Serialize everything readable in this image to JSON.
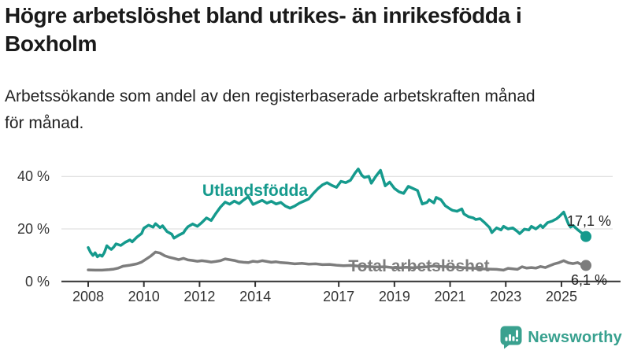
{
  "header": {
    "title_lines": [
      "Högre arbetslöshet bland utrikes- än inrikesfödda i",
      "Boxholm"
    ],
    "subtitle_lines": [
      "Arbetssökande som andel av den registerbaserade arbetskraften månad",
      "för månad."
    ]
  },
  "footer": {
    "brand": "Newsworthy"
  },
  "colors": {
    "foreign_line": "#159a8d",
    "total_line": "#7d7d7d",
    "axis": "#333333",
    "grid": "#d9d9d9",
    "value_label": "#222222",
    "brand": "#38a18f",
    "title_text": "#1a1a1a"
  },
  "chart_data": {
    "type": "line",
    "title": "Högre arbetslöshet bland utrikes- än inrikesfödda i Boxholm",
    "subtitle": "Arbetssökande som andel av den registerbaserade arbetskraften månad för månad.",
    "unit": "%",
    "grid": "horizontal",
    "x_axis": {
      "range": [
        2007.95,
        2026.15
      ],
      "ticks": [
        {
          "year": 2008,
          "label": "2008"
        },
        {
          "year": 2010,
          "label": "2010"
        },
        {
          "year": 2012,
          "label": "2012"
        },
        {
          "year": 2014,
          "label": "2014"
        },
        {
          "year": 2017,
          "label": "2017"
        },
        {
          "year": 2019,
          "label": "2019"
        },
        {
          "year": 2021,
          "label": "2021"
        },
        {
          "year": 2023,
          "label": "2023"
        },
        {
          "year": 2025,
          "label": "2025"
        }
      ]
    },
    "y_axis": {
      "range": [
        0,
        44
      ],
      "ticks": [
        {
          "value": 0,
          "label": "0 %"
        },
        {
          "value": 20,
          "label": "20 %"
        },
        {
          "value": 40,
          "label": "40 %"
        }
      ]
    },
    "series": [
      {
        "id": "total",
        "name": "Total arbetslöshet",
        "color": "#7d7d7d",
        "end_value": 6.1,
        "end_label": "6,1 %",
        "points": [
          [
            2008.0,
            4.4
          ],
          [
            2008.25,
            4.3
          ],
          [
            2008.5,
            4.3
          ],
          [
            2008.75,
            4.5
          ],
          [
            2008.92,
            4.7
          ],
          [
            2009.08,
            5.1
          ],
          [
            2009.25,
            5.8
          ],
          [
            2009.5,
            6.2
          ],
          [
            2009.75,
            6.7
          ],
          [
            2009.92,
            7.4
          ],
          [
            2010.08,
            8.5
          ],
          [
            2010.25,
            9.7
          ],
          [
            2010.42,
            11.2
          ],
          [
            2010.58,
            10.8
          ],
          [
            2010.75,
            9.8
          ],
          [
            2010.92,
            9.2
          ],
          [
            2011.08,
            8.8
          ],
          [
            2011.25,
            8.3
          ],
          [
            2011.42,
            8.8
          ],
          [
            2011.58,
            8.2
          ],
          [
            2011.75,
            8.0
          ],
          [
            2011.92,
            7.7
          ],
          [
            2012.08,
            7.9
          ],
          [
            2012.25,
            7.7
          ],
          [
            2012.42,
            7.4
          ],
          [
            2012.58,
            7.6
          ],
          [
            2012.75,
            7.9
          ],
          [
            2012.92,
            8.6
          ],
          [
            2013.08,
            8.3
          ],
          [
            2013.25,
            8.0
          ],
          [
            2013.42,
            7.5
          ],
          [
            2013.58,
            7.3
          ],
          [
            2013.75,
            7.2
          ],
          [
            2013.92,
            7.7
          ],
          [
            2014.08,
            7.5
          ],
          [
            2014.25,
            7.9
          ],
          [
            2014.42,
            7.6
          ],
          [
            2014.58,
            7.3
          ],
          [
            2014.75,
            7.5
          ],
          [
            2014.92,
            7.2
          ],
          [
            2015.17,
            7.0
          ],
          [
            2015.42,
            6.7
          ],
          [
            2015.67,
            6.9
          ],
          [
            2015.92,
            6.6
          ],
          [
            2016.17,
            6.7
          ],
          [
            2016.42,
            6.4
          ],
          [
            2016.67,
            6.5
          ],
          [
            2016.92,
            6.2
          ],
          [
            2017.17,
            6.0
          ],
          [
            2017.42,
            6.1
          ],
          [
            2017.67,
            5.9
          ],
          [
            2017.92,
            5.7
          ],
          [
            2018.17,
            5.6
          ],
          [
            2018.42,
            5.5
          ],
          [
            2018.67,
            5.6
          ],
          [
            2018.92,
            5.3
          ],
          [
            2019.17,
            5.2
          ],
          [
            2019.42,
            5.4
          ],
          [
            2019.67,
            5.2
          ],
          [
            2019.92,
            5.4
          ],
          [
            2020.17,
            5.6
          ],
          [
            2020.42,
            5.9
          ],
          [
            2020.67,
            5.7
          ],
          [
            2020.92,
            5.6
          ],
          [
            2021.17,
            5.4
          ],
          [
            2021.42,
            5.3
          ],
          [
            2021.67,
            5.1
          ],
          [
            2021.92,
            5.0
          ],
          [
            2022.17,
            4.8
          ],
          [
            2022.42,
            4.7
          ],
          [
            2022.67,
            4.6
          ],
          [
            2022.92,
            4.3
          ],
          [
            2023.08,
            5.0
          ],
          [
            2023.25,
            4.8
          ],
          [
            2023.42,
            4.6
          ],
          [
            2023.58,
            5.6
          ],
          [
            2023.75,
            5.1
          ],
          [
            2023.92,
            5.3
          ],
          [
            2024.08,
            5.1
          ],
          [
            2024.25,
            5.7
          ],
          [
            2024.42,
            5.3
          ],
          [
            2024.58,
            6.0
          ],
          [
            2024.75,
            6.7
          ],
          [
            2024.92,
            7.2
          ],
          [
            2025.08,
            7.9
          ],
          [
            2025.25,
            7.1
          ],
          [
            2025.42,
            6.8
          ],
          [
            2025.58,
            7.2
          ],
          [
            2025.75,
            6.3
          ],
          [
            2025.88,
            6.1
          ]
        ]
      },
      {
        "id": "foreign",
        "name": "Utlandsfödda",
        "color": "#159a8d",
        "end_value": 17.1,
        "end_label": "17,1 %",
        "points": [
          [
            2008.0,
            12.9
          ],
          [
            2008.08,
            11.2
          ],
          [
            2008.17,
            9.9
          ],
          [
            2008.25,
            10.9
          ],
          [
            2008.33,
            9.4
          ],
          [
            2008.42,
            10.1
          ],
          [
            2008.5,
            9.6
          ],
          [
            2008.58,
            11.0
          ],
          [
            2008.67,
            13.6
          ],
          [
            2008.75,
            12.8
          ],
          [
            2008.83,
            12.2
          ],
          [
            2008.92,
            13.1
          ],
          [
            2009.0,
            14.3
          ],
          [
            2009.17,
            13.7
          ],
          [
            2009.33,
            14.9
          ],
          [
            2009.5,
            15.8
          ],
          [
            2009.58,
            15.1
          ],
          [
            2009.75,
            16.9
          ],
          [
            2009.92,
            18.3
          ],
          [
            2010.0,
            20.3
          ],
          [
            2010.17,
            21.4
          ],
          [
            2010.33,
            20.7
          ],
          [
            2010.42,
            22.0
          ],
          [
            2010.58,
            20.5
          ],
          [
            2010.67,
            21.2
          ],
          [
            2010.83,
            19.0
          ],
          [
            2011.0,
            18.0
          ],
          [
            2011.08,
            16.5
          ],
          [
            2011.25,
            17.6
          ],
          [
            2011.42,
            18.5
          ],
          [
            2011.5,
            19.8
          ],
          [
            2011.58,
            20.8
          ],
          [
            2011.75,
            21.9
          ],
          [
            2011.92,
            21.0
          ],
          [
            2012.08,
            22.4
          ],
          [
            2012.25,
            24.2
          ],
          [
            2012.42,
            23.2
          ],
          [
            2012.58,
            25.8
          ],
          [
            2012.75,
            28.3
          ],
          [
            2012.92,
            30.2
          ],
          [
            2013.08,
            29.4
          ],
          [
            2013.25,
            30.6
          ],
          [
            2013.42,
            29.6
          ],
          [
            2013.58,
            31.0
          ],
          [
            2013.75,
            32.3
          ],
          [
            2013.92,
            29.3
          ],
          [
            2014.08,
            30.1
          ],
          [
            2014.25,
            30.9
          ],
          [
            2014.42,
            29.8
          ],
          [
            2014.58,
            30.5
          ],
          [
            2014.75,
            29.5
          ],
          [
            2014.92,
            30.1
          ],
          [
            2015.08,
            28.7
          ],
          [
            2015.25,
            27.9
          ],
          [
            2015.42,
            28.7
          ],
          [
            2015.58,
            29.8
          ],
          [
            2015.75,
            30.6
          ],
          [
            2015.92,
            31.4
          ],
          [
            2016.08,
            33.4
          ],
          [
            2016.25,
            35.3
          ],
          [
            2016.42,
            36.8
          ],
          [
            2016.58,
            37.6
          ],
          [
            2016.75,
            36.6
          ],
          [
            2016.92,
            35.8
          ],
          [
            2017.08,
            38.1
          ],
          [
            2017.25,
            37.6
          ],
          [
            2017.42,
            38.5
          ],
          [
            2017.58,
            41.2
          ],
          [
            2017.7,
            42.8
          ],
          [
            2017.83,
            40.4
          ],
          [
            2017.92,
            39.6
          ],
          [
            2018.08,
            40.0
          ],
          [
            2018.17,
            37.4
          ],
          [
            2018.33,
            40.0
          ],
          [
            2018.5,
            42.3
          ],
          [
            2018.67,
            36.4
          ],
          [
            2018.83,
            37.8
          ],
          [
            2019.0,
            35.4
          ],
          [
            2019.17,
            34.1
          ],
          [
            2019.33,
            33.5
          ],
          [
            2019.5,
            36.2
          ],
          [
            2019.67,
            35.4
          ],
          [
            2019.83,
            34.6
          ],
          [
            2020.0,
            29.5
          ],
          [
            2020.17,
            30.1
          ],
          [
            2020.25,
            31.1
          ],
          [
            2020.42,
            29.9
          ],
          [
            2020.5,
            32.0
          ],
          [
            2020.67,
            31.1
          ],
          [
            2020.83,
            28.8
          ],
          [
            2021.0,
            27.6
          ],
          [
            2021.08,
            27.1
          ],
          [
            2021.25,
            26.7
          ],
          [
            2021.42,
            27.6
          ],
          [
            2021.5,
            25.7
          ],
          [
            2021.67,
            24.6
          ],
          [
            2021.83,
            24.2
          ],
          [
            2021.92,
            23.6
          ],
          [
            2022.08,
            23.9
          ],
          [
            2022.25,
            22.3
          ],
          [
            2022.42,
            20.5
          ],
          [
            2022.5,
            18.6
          ],
          [
            2022.67,
            20.4
          ],
          [
            2022.83,
            19.6
          ],
          [
            2022.92,
            21.0
          ],
          [
            2023.08,
            20.0
          ],
          [
            2023.25,
            20.4
          ],
          [
            2023.42,
            19.0
          ],
          [
            2023.5,
            18.2
          ],
          [
            2023.67,
            19.9
          ],
          [
            2023.83,
            19.6
          ],
          [
            2023.92,
            21.0
          ],
          [
            2024.08,
            20.0
          ],
          [
            2024.25,
            21.4
          ],
          [
            2024.33,
            20.5
          ],
          [
            2024.5,
            22.4
          ],
          [
            2024.67,
            23.0
          ],
          [
            2024.83,
            23.9
          ],
          [
            2024.92,
            24.7
          ],
          [
            2025.08,
            26.4
          ],
          [
            2025.25,
            21.9
          ],
          [
            2025.33,
            20.7
          ],
          [
            2025.42,
            21.3
          ],
          [
            2025.58,
            19.7
          ],
          [
            2025.75,
            18.3
          ],
          [
            2025.88,
            17.1
          ]
        ]
      }
    ]
  }
}
